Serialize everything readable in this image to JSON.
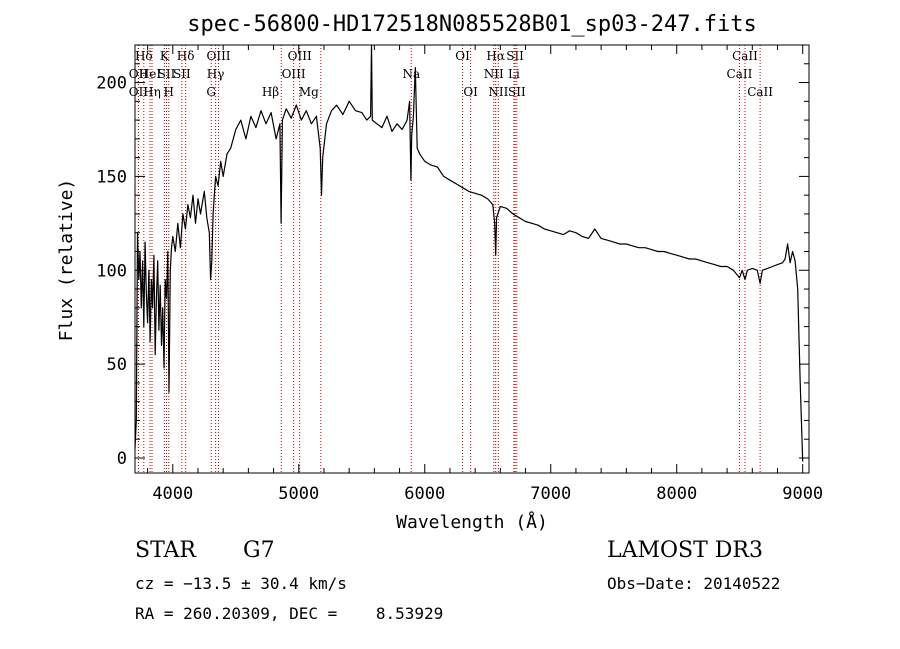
{
  "chart_data": {
    "type": "line",
    "title": "spec-56800-HD172518N085528B01_sp03-247.fits",
    "xlabel": "Wavelength (Å)",
    "ylabel": "Flux (relative)",
    "xlim": [
      3700,
      9050
    ],
    "ylim": [
      -8,
      220
    ],
    "xticks": [
      "4000",
      "5000",
      "6000",
      "7000",
      "8000",
      "9000"
    ],
    "yticks": [
      "0",
      "50",
      "100",
      "150",
      "200"
    ],
    "grid": false,
    "series": [
      {
        "color": "#000000",
        "points": [
          [
            3700,
            5
          ],
          [
            3710,
            20
          ],
          [
            3720,
            120
          ],
          [
            3730,
            95
          ],
          [
            3740,
            110
          ],
          [
            3750,
            80
          ],
          [
            3760,
            105
          ],
          [
            3770,
            70
          ],
          [
            3780,
            115
          ],
          [
            3790,
            88
          ],
          [
            3800,
            72
          ],
          [
            3810,
            100
          ],
          [
            3820,
            62
          ],
          [
            3830,
            95
          ],
          [
            3840,
            80
          ],
          [
            3850,
            108
          ],
          [
            3860,
            55
          ],
          [
            3870,
            85
          ],
          [
            3880,
            105
          ],
          [
            3890,
            68
          ],
          [
            3900,
            92
          ],
          [
            3910,
            60
          ],
          [
            3920,
            80
          ],
          [
            3930,
            48
          ],
          [
            3940,
            95
          ],
          [
            3950,
            85
          ],
          [
            3960,
            110
          ],
          [
            3970,
            35
          ],
          [
            3980,
            100
          ],
          [
            3990,
            112
          ],
          [
            4000,
            118
          ],
          [
            4020,
            110
          ],
          [
            4040,
            125
          ],
          [
            4060,
            112
          ],
          [
            4080,
            130
          ],
          [
            4100,
            122
          ],
          [
            4120,
            135
          ],
          [
            4140,
            128
          ],
          [
            4160,
            140
          ],
          [
            4180,
            125
          ],
          [
            4200,
            138
          ],
          [
            4220,
            130
          ],
          [
            4250,
            142
          ],
          [
            4270,
            128
          ],
          [
            4290,
            120
          ],
          [
            4300,
            95
          ],
          [
            4310,
            105
          ],
          [
            4320,
            130
          ],
          [
            4340,
            150
          ],
          [
            4360,
            145
          ],
          [
            4380,
            158
          ],
          [
            4400,
            150
          ],
          [
            4430,
            162
          ],
          [
            4460,
            165
          ],
          [
            4500,
            175
          ],
          [
            4540,
            180
          ],
          [
            4580,
            170
          ],
          [
            4620,
            182
          ],
          [
            4660,
            176
          ],
          [
            4700,
            185
          ],
          [
            4740,
            178
          ],
          [
            4780,
            184
          ],
          [
            4820,
            170
          ],
          [
            4850,
            178
          ],
          [
            4860,
            125
          ],
          [
            4870,
            180
          ],
          [
            4900,
            186
          ],
          [
            4940,
            181
          ],
          [
            4980,
            188
          ],
          [
            5020,
            180
          ],
          [
            5060,
            185
          ],
          [
            5100,
            178
          ],
          [
            5140,
            182
          ],
          [
            5170,
            165
          ],
          [
            5180,
            140
          ],
          [
            5190,
            160
          ],
          [
            5220,
            178
          ],
          [
            5260,
            185
          ],
          [
            5300,
            188
          ],
          [
            5350,
            183
          ],
          [
            5400,
            190
          ],
          [
            5450,
            185
          ],
          [
            5500,
            184
          ],
          [
            5540,
            180
          ],
          [
            5570,
            182
          ],
          [
            5577,
            220
          ],
          [
            5584,
            180
          ],
          [
            5620,
            178
          ],
          [
            5660,
            176
          ],
          [
            5700,
            182
          ],
          [
            5740,
            174
          ],
          [
            5780,
            178
          ],
          [
            5820,
            175
          ],
          [
            5860,
            180
          ],
          [
            5880,
            190
          ],
          [
            5890,
            148
          ],
          [
            5896,
            172
          ],
          [
            5910,
            182
          ],
          [
            5925,
            208
          ],
          [
            5940,
            165
          ],
          [
            5960,
            162
          ],
          [
            6000,
            158
          ],
          [
            6050,
            156
          ],
          [
            6100,
            155
          ],
          [
            6150,
            150
          ],
          [
            6200,
            148
          ],
          [
            6250,
            146
          ],
          [
            6300,
            144
          ],
          [
            6350,
            142
          ],
          [
            6400,
            141
          ],
          [
            6450,
            140
          ],
          [
            6500,
            138
          ],
          [
            6540,
            135
          ],
          [
            6555,
            125
          ],
          [
            6563,
            108
          ],
          [
            6570,
            128
          ],
          [
            6600,
            134
          ],
          [
            6650,
            133
          ],
          [
            6700,
            130
          ],
          [
            6750,
            128
          ],
          [
            6800,
            126
          ],
          [
            6850,
            125
          ],
          [
            6900,
            124
          ],
          [
            6950,
            122
          ],
          [
            7000,
            121
          ],
          [
            7050,
            120
          ],
          [
            7100,
            119
          ],
          [
            7150,
            121
          ],
          [
            7200,
            120
          ],
          [
            7250,
            118
          ],
          [
            7300,
            117
          ],
          [
            7350,
            122
          ],
          [
            7400,
            117
          ],
          [
            7450,
            116
          ],
          [
            7500,
            115
          ],
          [
            7550,
            114
          ],
          [
            7600,
            114
          ],
          [
            7650,
            113
          ],
          [
            7700,
            112
          ],
          [
            7750,
            112
          ],
          [
            7800,
            111
          ],
          [
            7850,
            110
          ],
          [
            7900,
            110
          ],
          [
            7950,
            109
          ],
          [
            8000,
            108
          ],
          [
            8050,
            107
          ],
          [
            8100,
            106
          ],
          [
            8150,
            106
          ],
          [
            8200,
            105
          ],
          [
            8250,
            104
          ],
          [
            8300,
            103
          ],
          [
            8350,
            102
          ],
          [
            8400,
            102
          ],
          [
            8450,
            100
          ],
          [
            8498,
            96
          ],
          [
            8520,
            100
          ],
          [
            8542,
            95
          ],
          [
            8560,
            100
          ],
          [
            8600,
            101
          ],
          [
            8640,
            100
          ],
          [
            8662,
            93
          ],
          [
            8680,
            100
          ],
          [
            8720,
            101
          ],
          [
            8760,
            102
          ],
          [
            8800,
            103
          ],
          [
            8840,
            104
          ],
          [
            8860,
            106
          ],
          [
            8880,
            114
          ],
          [
            8900,
            104
          ],
          [
            8920,
            110
          ],
          [
            8940,
            105
          ],
          [
            8960,
            90
          ],
          [
            8980,
            40
          ],
          [
            9000,
            -2
          ]
        ]
      }
    ],
    "lines": [
      {
        "name": "Hδ",
        "x": 3770,
        "tier": 0,
        "anchor": "middle"
      },
      {
        "name": "OII",
        "x": 3727,
        "tier": 1,
        "anchor": "middle"
      },
      {
        "name": "OII",
        "x": 3727,
        "tier": 2,
        "anchor": "middle"
      },
      {
        "name": "HeI",
        "x": 3819,
        "tier": 1,
        "anchor": "middle"
      },
      {
        "name": "Hη",
        "x": 3835,
        "tier": 2,
        "anchor": "middle"
      },
      {
        "name": "K",
        "x": 3933,
        "tier": 0,
        "anchor": "middle"
      },
      {
        "name": "SII",
        "x": 3950,
        "tier": 1,
        "anchor": "middle"
      },
      {
        "name": "H",
        "x": 3968,
        "tier": 2,
        "anchor": "middle"
      },
      {
        "name": "Hδ",
        "x": 4102,
        "tier": 0,
        "anchor": "middle"
      },
      {
        "name": "SII",
        "x": 4072,
        "tier": 1,
        "anchor": "middle"
      },
      {
        "name": "OIII",
        "x": 4363,
        "tier": 0,
        "anchor": "middle"
      },
      {
        "name": "Hγ",
        "x": 4340,
        "tier": 1,
        "anchor": "middle"
      },
      {
        "name": "G",
        "x": 4305,
        "tier": 2,
        "anchor": "middle"
      },
      {
        "name": "OIII",
        "x": 5007,
        "tier": 0,
        "anchor": "middle"
      },
      {
        "name": "OIII",
        "x": 4959,
        "tier": 1,
        "anchor": "middle"
      },
      {
        "name": "Hβ",
        "x": 4861,
        "tier": 2,
        "anchor": "end"
      },
      {
        "name": "Mg",
        "x": 5175,
        "tier": 2,
        "anchor": "end"
      },
      {
        "name": "Na",
        "x": 5893,
        "tier": 1,
        "anchor": "middle"
      },
      {
        "name": "OI",
        "x": 6300,
        "tier": 0,
        "anchor": "middle"
      },
      {
        "name": "OI",
        "x": 6364,
        "tier": 2,
        "anchor": "middle"
      },
      {
        "name": "Hα",
        "x": 6563,
        "tier": 0,
        "anchor": "middle"
      },
      {
        "name": "SII",
        "x": 6717,
        "tier": 0,
        "anchor": "middle"
      },
      {
        "name": "NII",
        "x": 6548,
        "tier": 1,
        "anchor": "middle"
      },
      {
        "name": "Li",
        "x": 6708,
        "tier": 1,
        "anchor": "middle"
      },
      {
        "name": "NII",
        "x": 6584,
        "tier": 2,
        "anchor": "middle"
      },
      {
        "name": "SII",
        "x": 6731,
        "tier": 2,
        "anchor": "middle"
      },
      {
        "name": "CaII",
        "x": 8542,
        "tier": 0,
        "anchor": "middle"
      },
      {
        "name": "CaII",
        "x": 8498,
        "tier": 1,
        "anchor": "middle"
      },
      {
        "name": "CaII",
        "x": 8662,
        "tier": 2,
        "anchor": "middle"
      }
    ]
  },
  "info": {
    "class": "STAR",
    "subclass": "G7",
    "survey": "LAMOST DR3",
    "cz": "cz = −13.5 ± 30.4 km/s",
    "obs_date": "Obs−Date: 20140522",
    "radec": "RA = 260.20309, DEC =    8.53929"
  }
}
